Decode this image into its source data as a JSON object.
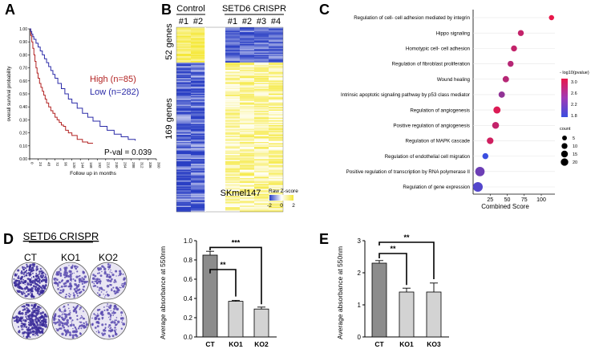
{
  "panel_letters": [
    "A",
    "B",
    "C",
    "D",
    "E"
  ],
  "chart_data": [
    {
      "id": "A",
      "type": "line",
      "ylabel": "overall survival probability",
      "xlabel": "Follow up in months",
      "yticks": [
        "0.00",
        "0.10",
        "0.20",
        "0.30",
        "0.40",
        "0.50",
        "0.60",
        "0.70",
        "0.80",
        "0.90",
        "1.00"
      ],
      "xticks": [
        "0",
        "24",
        "48",
        "72",
        "96",
        "120",
        "144",
        "168",
        "192",
        "216",
        "240",
        "264",
        "288",
        "312",
        "336",
        "360"
      ],
      "xlim": [
        0,
        360
      ],
      "ylim": [
        0,
        1
      ],
      "annotation": "P-val = 0.039",
      "series": [
        {
          "name": "High (n=85)",
          "color": "#b22222",
          "x": [
            0,
            3,
            6,
            9,
            12,
            15,
            18,
            21,
            24,
            28,
            32,
            36,
            40,
            44,
            48,
            54,
            60,
            66,
            72,
            78,
            84,
            90,
            96,
            102,
            110,
            120,
            135,
            150,
            165,
            180
          ],
          "y": [
            1.0,
            0.95,
            0.9,
            0.85,
            0.8,
            0.75,
            0.7,
            0.66,
            0.62,
            0.58,
            0.55,
            0.52,
            0.49,
            0.46,
            0.43,
            0.4,
            0.37,
            0.35,
            0.32,
            0.3,
            0.28,
            0.26,
            0.25,
            0.22,
            0.2,
            0.18,
            0.15,
            0.13,
            0.12,
            0.12
          ]
        },
        {
          "name": "Low (n=282)",
          "color": "#2b2ba8",
          "x": [
            0,
            3,
            6,
            9,
            12,
            18,
            24,
            30,
            36,
            42,
            48,
            54,
            60,
            66,
            72,
            80,
            90,
            100,
            110,
            120,
            135,
            150,
            165,
            180,
            200,
            220,
            240,
            260,
            280,
            300
          ],
          "y": [
            1.0,
            0.98,
            0.96,
            0.94,
            0.92,
            0.89,
            0.86,
            0.83,
            0.8,
            0.77,
            0.74,
            0.71,
            0.68,
            0.65,
            0.62,
            0.58,
            0.54,
            0.5,
            0.46,
            0.43,
            0.39,
            0.35,
            0.32,
            0.29,
            0.25,
            0.22,
            0.19,
            0.17,
            0.15,
            0.14
          ]
        }
      ],
      "legend": [
        "High (n=85)",
        "Low (n=282)"
      ]
    },
    {
      "id": "B",
      "type": "heatmap",
      "group_labels": [
        "Control",
        "SETD6 CRISPR"
      ],
      "column_labels": [
        "#1",
        "#2",
        "#1",
        "#2",
        "#3",
        "#4"
      ],
      "row_groups": [
        "52 genes",
        "169 genes"
      ],
      "cell_line": "SKmel147",
      "colorbar_title": "Raw Z-score",
      "colorbar_ticks": [
        "-2",
        "0",
        "2"
      ]
    },
    {
      "id": "C",
      "type": "scatter",
      "xlabel": "Combined Score",
      "xticks": [
        "25",
        "50",
        "75",
        "100"
      ],
      "xlim": [
        0,
        120
      ],
      "categories": [
        "Regulation of cell- cell adhesion mediated by integrin",
        "Hippo signaling",
        "Homotypic cell- cell adhesion",
        "Regulation of fibroblast proliferation",
        "Wound healing",
        "Intrinsic apoptotic signaling pathway by p53 class mediator",
        "Regulation of angiogenesis",
        "Positive regulation of angiogenesis",
        "Regulation of MAPK cascade",
        "Regulation of endothelial cell migration",
        "Positive regulation of transcription by RNA polymerase II",
        "Regulation of gene expression"
      ],
      "values": [
        115,
        70,
        60,
        55,
        48,
        42,
        35,
        33,
        25,
        18,
        10,
        7
      ],
      "neglog10p": [
        3.2,
        2.9,
        2.9,
        2.8,
        2.8,
        2.5,
        3.1,
        2.9,
        3.0,
        1.8,
        2.2,
        2.0
      ],
      "counts": [
        3,
        5,
        5,
        5,
        6,
        6,
        9,
        8,
        7,
        5,
        20,
        22
      ],
      "colorbar_title": "- log10(pvalue)",
      "colorbar_ticks": [
        "3.0",
        "2.6",
        "2.2",
        "1.8"
      ],
      "size_legend_title": "count",
      "size_legend": [
        "5",
        "10",
        "15",
        "20"
      ]
    },
    {
      "id": "D",
      "type": "bar",
      "plate_title": "SETD6 CRISPR",
      "plate_labels": [
        "CT",
        "KO1",
        "KO2"
      ],
      "categories": [
        "CT",
        "KO1",
        "KO2"
      ],
      "values": [
        0.85,
        0.37,
        0.29
      ],
      "errors": [
        0.04,
        0.01,
        0.02
      ],
      "ylabel": "Average absorbance at 550nm",
      "yticks": [
        "0.0",
        "0.2",
        "0.4",
        "0.6",
        "0.8",
        "1.0"
      ],
      "ylim": [
        0,
        1.0
      ],
      "significance": [
        "**",
        "***"
      ],
      "bar_colors": [
        "#8c8c8c",
        "#d3d3d3",
        "#d3d3d3"
      ]
    },
    {
      "id": "E",
      "type": "bar",
      "categories": [
        "CT",
        "KO1",
        "KO3"
      ],
      "values": [
        2.3,
        1.4,
        1.4
      ],
      "errors": [
        0.08,
        0.12,
        0.28
      ],
      "ylabel": "Average absorbance at 550nm",
      "yticks": [
        "0",
        "1",
        "2",
        "3"
      ],
      "ylim": [
        0,
        3
      ],
      "significance": [
        "**",
        "**"
      ],
      "bar_colors": [
        "#8c8c8c",
        "#d3d3d3",
        "#d3d3d3"
      ]
    }
  ]
}
